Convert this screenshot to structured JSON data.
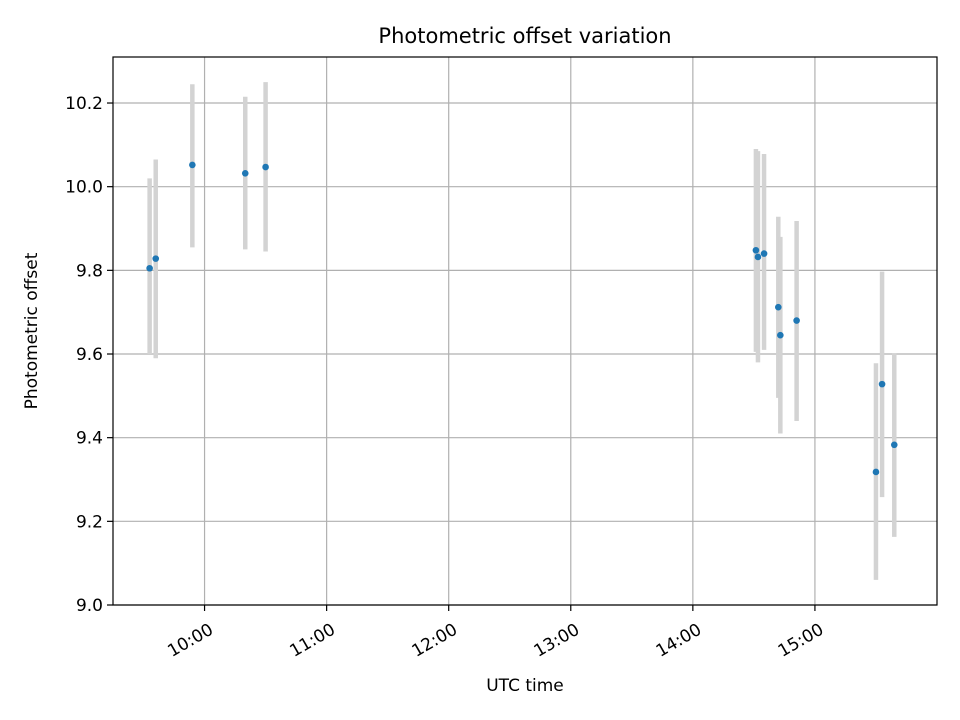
{
  "chart_data": {
    "type": "scatter",
    "title": "Photometric offset variation",
    "xlabel": "UTC time",
    "ylabel": "Photometric offset",
    "x_axis_kind": "time",
    "xlim": [
      "09:15",
      "16:00"
    ],
    "ylim": [
      9.0,
      10.31
    ],
    "x_ticks": [
      "10:00",
      "11:00",
      "12:00",
      "13:00",
      "14:00",
      "15:00"
    ],
    "y_ticks": [
      9.0,
      9.2,
      9.4,
      9.6,
      9.8,
      10.0,
      10.2
    ],
    "grid": true,
    "legend": "none",
    "colors": {
      "point": "#1f77b4",
      "errorbar": "#d3d3d3",
      "grid": "#b0b0b0"
    },
    "series": [
      {
        "points": [
          {
            "x": "09:33",
            "y": 9.805,
            "err_low": 9.6,
            "err_high": 10.02
          },
          {
            "x": "09:36",
            "y": 9.828,
            "err_low": 9.59,
            "err_high": 10.065
          },
          {
            "x": "09:54",
            "y": 10.052,
            "err_low": 9.855,
            "err_high": 10.245
          },
          {
            "x": "10:20",
            "y": 10.032,
            "err_low": 9.85,
            "err_high": 10.215
          },
          {
            "x": "10:30",
            "y": 10.047,
            "err_low": 9.845,
            "err_high": 10.25
          },
          {
            "x": "14:31",
            "y": 9.848,
            "err_low": 9.605,
            "err_high": 10.09
          },
          {
            "x": "14:32",
            "y": 9.832,
            "err_low": 9.58,
            "err_high": 10.085
          },
          {
            "x": "14:35",
            "y": 9.84,
            "err_low": 9.61,
            "err_high": 10.078
          },
          {
            "x": "14:42",
            "y": 9.712,
            "err_low": 9.495,
            "err_high": 9.928
          },
          {
            "x": "14:43",
            "y": 9.645,
            "err_low": 9.41,
            "err_high": 9.88
          },
          {
            "x": "14:51",
            "y": 9.68,
            "err_low": 9.44,
            "err_high": 9.918
          },
          {
            "x": "15:30",
            "y": 9.318,
            "err_low": 9.06,
            "err_high": 9.578
          },
          {
            "x": "15:33",
            "y": 9.528,
            "err_low": 9.258,
            "err_high": 9.797
          },
          {
            "x": "15:39",
            "y": 9.383,
            "err_low": 9.163,
            "err_high": 9.602
          }
        ]
      }
    ]
  }
}
